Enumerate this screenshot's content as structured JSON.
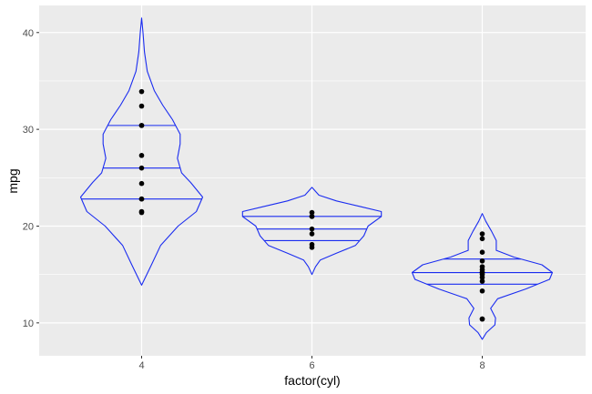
{
  "chart_data": {
    "type": "violin",
    "xlabel": "factor(cyl)",
    "ylabel": "mpg",
    "ylim": [
      6.6,
      42.8
    ],
    "y_ticks": [
      10,
      20,
      30,
      40
    ],
    "grid": true,
    "colors": {
      "panel": "#ebebeb",
      "grid": "#ffffff",
      "violin": "#1a2cf0",
      "point": "#000000",
      "tick_text": "#4d4d4d"
    },
    "groups": [
      {
        "category": "4",
        "quantiles": [
          22.8,
          26.0,
          30.4
        ],
        "density": [
          [
            13.9,
            0.0
          ],
          [
            16.0,
            0.14
          ],
          [
            18.0,
            0.27
          ],
          [
            20.0,
            0.52
          ],
          [
            21.5,
            0.78
          ],
          [
            23.0,
            0.87
          ],
          [
            24.5,
            0.7
          ],
          [
            25.5,
            0.57
          ],
          [
            27.0,
            0.51
          ],
          [
            28.5,
            0.55
          ],
          [
            29.5,
            0.55
          ],
          [
            31.0,
            0.44
          ],
          [
            32.5,
            0.3
          ],
          [
            34.0,
            0.18
          ],
          [
            36.0,
            0.08
          ],
          [
            38.0,
            0.04
          ],
          [
            40.0,
            0.02
          ],
          [
            41.5,
            0.0
          ]
        ],
        "points": [
          21.4,
          21.5,
          22.8,
          22.8,
          24.4,
          26.0,
          27.3,
          30.4,
          30.4,
          32.4,
          33.9
        ]
      },
      {
        "category": "6",
        "quantiles": [
          18.5,
          19.7,
          21.0
        ],
        "density": [
          [
            15.0,
            0.0
          ],
          [
            15.8,
            0.05
          ],
          [
            16.5,
            0.12
          ],
          [
            17.2,
            0.35
          ],
          [
            18.0,
            0.62
          ],
          [
            19.0,
            0.74
          ],
          [
            20.0,
            0.8
          ],
          [
            21.0,
            0.99
          ],
          [
            21.5,
            0.99
          ],
          [
            22.0,
            0.7
          ],
          [
            22.6,
            0.35
          ],
          [
            23.2,
            0.1
          ],
          [
            24.0,
            0.0
          ]
        ],
        "points": [
          17.8,
          18.1,
          19.2,
          19.7,
          21.0,
          21.0,
          21.4
        ]
      },
      {
        "category": "8",
        "quantiles": [
          14.0,
          15.2,
          16.6
        ],
        "density": [
          [
            8.3,
            0.0
          ],
          [
            9.0,
            0.06
          ],
          [
            9.8,
            0.18
          ],
          [
            10.5,
            0.19
          ],
          [
            11.5,
            0.12
          ],
          [
            12.5,
            0.22
          ],
          [
            13.5,
            0.62
          ],
          [
            14.5,
            0.96
          ],
          [
            15.2,
            1.0
          ],
          [
            16.0,
            0.85
          ],
          [
            16.8,
            0.45
          ],
          [
            17.5,
            0.2
          ],
          [
            18.5,
            0.2
          ],
          [
            19.5,
            0.13
          ],
          [
            20.5,
            0.05
          ],
          [
            21.3,
            0.0
          ]
        ],
        "points": [
          10.4,
          10.4,
          13.3,
          14.3,
          14.7,
          15.0,
          15.2,
          15.2,
          15.5,
          15.8,
          16.4,
          17.3,
          18.7,
          19.2
        ]
      }
    ]
  }
}
